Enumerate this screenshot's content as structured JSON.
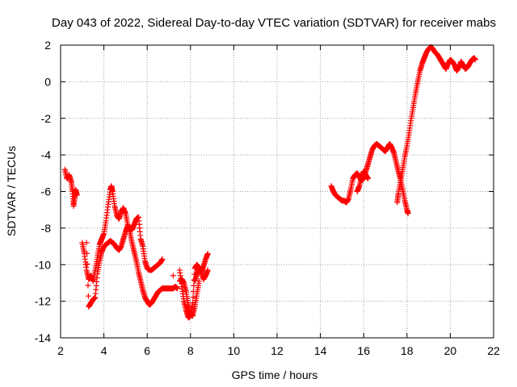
{
  "chart_data": {
    "type": "scatter",
    "title": "Day 043 of 2022, Sidereal Day-to-day VTEC variation (SDTVAR) for receiver mabs",
    "xlabel": "GPS time / hours",
    "ylabel": "SDTVAR / TECUs",
    "xlim": [
      2,
      22
    ],
    "ylim": [
      -14,
      2
    ],
    "xticks": [
      2,
      4,
      6,
      8,
      10,
      12,
      14,
      16,
      18,
      20,
      22
    ],
    "yticks": [
      -14,
      -12,
      -10,
      -8,
      -6,
      -4,
      -2,
      0,
      2
    ],
    "grid": true,
    "marker": "+",
    "colors": {
      "series": "#ff0000",
      "grid": "#a0a0a0",
      "axis": "#000000"
    },
    "series": [
      {
        "name": "SDTVAR",
        "segments": [
          {
            "x": [
              2.2,
              2.3,
              2.4,
              2.5,
              2.55,
              2.6,
              2.65,
              2.7,
              2.75
            ],
            "y": [
              -4.8,
              -5.3,
              -5.1,
              -5.5,
              -6.0,
              -6.8,
              -6.3,
              -5.9,
              -6.2
            ]
          },
          {
            "x": [
              3.0,
              3.1,
              3.2,
              3.3,
              3.4,
              3.5,
              3.6,
              3.7,
              3.8,
              3.9,
              4.0,
              4.1,
              4.2,
              4.3,
              4.35,
              4.4,
              4.5,
              4.6,
              4.7,
              4.8,
              4.9,
              5.0,
              5.1,
              5.2,
              5.3,
              5.4,
              5.5,
              5.6,
              5.7,
              5.8,
              5.9,
              6.0,
              6.1,
              6.2,
              6.3,
              6.4,
              6.5,
              6.6,
              6.7,
              6.8,
              6.9,
              7.0,
              7.1,
              7.2,
              7.3,
              7.4
            ],
            "y": [
              -8.8,
              -9.4,
              -10.3,
              -10.8,
              -10.6,
              -10.9,
              -10.3,
              -9.6,
              -8.9,
              -8.6,
              -8.3,
              -7.6,
              -6.7,
              -5.9,
              -5.7,
              -6.0,
              -6.8,
              -7.3,
              -7.5,
              -7.1,
              -6.9,
              -7.2,
              -7.8,
              -8.2,
              -8.8,
              -9.3,
              -9.8,
              -10.4,
              -10.9,
              -11.4,
              -11.8,
              -12.0,
              -12.2,
              -12.1,
              -11.9,
              -11.7,
              -11.5,
              -11.4,
              -11.3,
              -11.3,
              -11.3,
              -11.3,
              -11.3,
              -11.3,
              -11.2,
              -11.3
            ]
          },
          {
            "x": [
              3.2,
              3.3,
              3.4,
              3.5,
              3.6,
              3.7,
              3.8,
              3.9,
              4.0,
              4.1,
              4.2,
              4.3,
              4.4,
              4.5,
              4.6,
              4.7,
              4.8,
              4.9,
              5.0,
              5.1,
              5.2,
              5.3,
              5.4,
              5.5,
              5.6,
              5.7,
              5.8,
              5.9,
              6.0,
              6.1,
              6.2,
              6.3,
              6.4,
              6.5,
              6.6,
              6.7
            ],
            "y": [
              -8.8,
              -12.3,
              -12.1,
              -11.9,
              -11.8,
              -10.5,
              -9.8,
              -9.3,
              -9.0,
              -8.9,
              -8.8,
              -8.7,
              -8.8,
              -8.9,
              -9.1,
              -9.2,
              -9.0,
              -8.6,
              -8.2,
              -7.9,
              -8.0,
              -8.1,
              -7.8,
              -7.5,
              -7.4,
              -8.6,
              -9.0,
              -9.8,
              -10.2,
              -10.3,
              -10.3,
              -10.2,
              -10.1,
              -10.0,
              -9.9,
              -9.7
            ]
          },
          {
            "x": [
              7.5,
              7.6,
              7.7,
              7.8,
              7.9,
              8.0,
              8.1,
              8.2,
              8.3,
              8.4
            ],
            "y": [
              -10.9,
              -10.8,
              -11.0,
              -11.5,
              -12.2,
              -12.7,
              -12.8,
              -12.3,
              -11.6,
              -10.9
            ]
          },
          {
            "x": [
              7.5,
              7.6,
              7.7,
              7.8,
              7.9,
              8.0,
              8.1,
              8.2,
              8.3,
              8.4,
              8.5,
              8.6,
              8.7,
              8.8
            ],
            "y": [
              -10.3,
              -11.2,
              -12.0,
              -12.5,
              -12.9,
              -12.8,
              -12.1,
              -10.2,
              -10.0,
              -10.2,
              -10.4,
              -10.1,
              -9.7,
              -9.4
            ]
          },
          {
            "x": [
              8.2,
              8.3,
              8.4,
              8.5,
              8.6,
              8.7,
              8.8
            ],
            "y": [
              -10.9,
              -10.5,
              -10.2,
              -10.4,
              -10.8,
              -10.6,
              -10.3
            ]
          },
          {
            "x": [
              7.2
            ],
            "y": [
              -10.6
            ]
          },
          {
            "x": [
              14.5,
              14.6,
              14.7,
              14.8,
              14.9,
              15.0,
              15.1,
              15.2,
              15.3,
              15.4,
              15.5,
              15.6,
              15.7,
              15.8,
              15.9,
              16.0,
              16.1,
              16.2,
              16.3,
              16.4,
              16.5,
              16.6,
              16.7,
              16.8,
              16.9,
              17.0,
              17.1,
              17.2,
              17.3,
              17.4,
              17.5,
              17.6,
              17.7,
              17.8,
              17.9,
              18.0,
              18.05
            ],
            "y": [
              -5.7,
              -6.0,
              -6.2,
              -6.3,
              -6.4,
              -6.5,
              -6.5,
              -6.6,
              -6.4,
              -5.9,
              -5.3,
              -5.1,
              -5.0,
              -5.2,
              -5.4,
              -5.3,
              -4.9,
              -4.5,
              -4.1,
              -3.7,
              -3.5,
              -3.4,
              -3.5,
              -3.6,
              -3.7,
              -3.8,
              -3.6,
              -3.4,
              -3.6,
              -3.9,
              -4.4,
              -4.9,
              -5.3,
              -5.9,
              -6.5,
              -7.0,
              -7.2
            ]
          },
          {
            "x": [
              15.7,
              15.8,
              15.9,
              16.0,
              16.1,
              16.2
            ],
            "y": [
              -6.0,
              -5.7,
              -5.2,
              -4.9,
              -5.1,
              -5.3
            ]
          },
          {
            "x": [
              17.55,
              17.6,
              17.7,
              17.8,
              17.9,
              18.0,
              18.1,
              18.2,
              18.3,
              18.4,
              18.5,
              18.6,
              18.7,
              18.8,
              18.9,
              19.0,
              19.1,
              19.2,
              19.3,
              19.4,
              19.5,
              19.6,
              19.7,
              19.8,
              19.9,
              20.0,
              20.1,
              20.2,
              20.3,
              20.4,
              20.5,
              20.6,
              20.7,
              20.8,
              20.9,
              21.0,
              21.1,
              21.15
            ],
            "y": [
              -6.6,
              -6.1,
              -5.4,
              -4.8,
              -4.1,
              -3.5,
              -2.8,
              -2.0,
              -1.3,
              -0.6,
              0.0,
              0.6,
              1.0,
              1.3,
              1.6,
              1.8,
              1.9,
              1.8,
              1.6,
              1.5,
              1.3,
              1.1,
              0.9,
              0.7,
              1.0,
              1.2,
              1.1,
              0.9,
              0.6,
              0.8,
              1.1,
              0.9,
              0.7,
              0.8,
              1.0,
              1.2,
              1.3,
              1.2
            ]
          }
        ]
      }
    ]
  }
}
